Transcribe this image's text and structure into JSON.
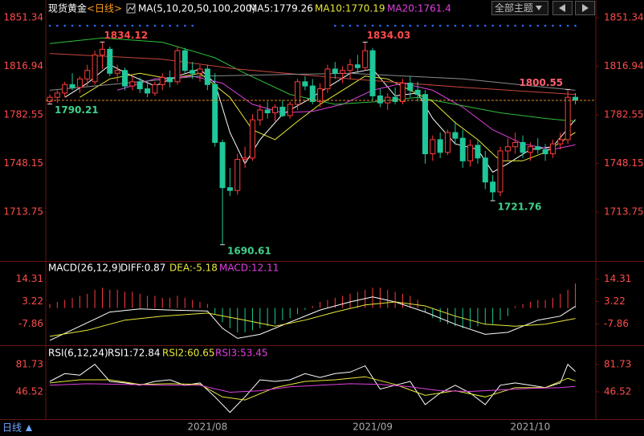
{
  "chart_data": [
    {
      "type": "candlestick",
      "title": "现货黄金",
      "period": "<日线>",
      "legend_title": "MA(5,10,20,50,100,200)",
      "categories": [
        null,
        null,
        null,
        null,
        null,
        null,
        null,
        null,
        null,
        null,
        null,
        null,
        null,
        null,
        null,
        null,
        null,
        null,
        null,
        null,
        null,
        "2021/08",
        null,
        null,
        null,
        null,
        null,
        null,
        null,
        null,
        null,
        null,
        null,
        null,
        null,
        null,
        null,
        null,
        null,
        null,
        null,
        null,
        null,
        "2021/09",
        null,
        null,
        null,
        null,
        null,
        null,
        null,
        null,
        null,
        null,
        null,
        null,
        null,
        null,
        null,
        null,
        null,
        null,
        null,
        null,
        "2021/10",
        null,
        null,
        null,
        null,
        null,
        null
      ],
      "open": [
        1792,
        1795,
        1798,
        1804,
        1802,
        1808,
        1806,
        1825,
        1829,
        1812,
        1814,
        1803,
        1806,
        1801,
        1798,
        1804,
        1809,
        1806,
        1828,
        1814,
        1812,
        1815,
        1804,
        1763,
        1731,
        1729,
        1751,
        1752,
        1779,
        1786,
        1784,
        1788,
        1782,
        1790,
        1806,
        1803,
        1792,
        1801,
        1815,
        1812,
        1814,
        1818,
        1816,
        1828,
        1796,
        1791,
        1795,
        1792,
        1805,
        1800,
        1797,
        1755,
        1765,
        1756,
        1770,
        1766,
        1750,
        1761,
        1752,
        1735,
        1728,
        1757,
        1760,
        1763,
        1756,
        1760,
        1758,
        1755,
        1762,
        1765,
        1795
      ],
      "high": [
        1797,
        1800,
        1806,
        1812,
        1810,
        1818,
        1828,
        1834.12,
        1831,
        1818,
        1816,
        1810,
        1809,
        1806,
        1806,
        1812,
        1814,
        1831,
        1830,
        1820,
        1818,
        1818,
        1812,
        1765,
        1745,
        1755,
        1760,
        1783,
        1790,
        1792,
        1790,
        1793,
        1792,
        1808,
        1810,
        1808,
        1805,
        1818,
        1820,
        1817,
        1822,
        1825,
        1834.03,
        1830,
        1801,
        1798,
        1802,
        1808,
        1810,
        1806,
        1800,
        1768,
        1770,
        1772,
        1778,
        1772,
        1765,
        1764,
        1757,
        1740,
        1760,
        1766,
        1770,
        1768,
        1763,
        1766,
        1762,
        1765,
        1770,
        1800.55,
        1798
      ],
      "low": [
        1790.21,
        1791,
        1795,
        1800,
        1798,
        1803,
        1804,
        1815,
        1810,
        1806,
        1800,
        1800,
        1798,
        1795,
        1796,
        1800,
        1802,
        1804,
        1812,
        1808,
        1806,
        1800,
        1760,
        1690.61,
        1725,
        1726,
        1745,
        1750,
        1775,
        1780,
        1778,
        1781,
        1780,
        1786,
        1800,
        1790,
        1788,
        1798,
        1808,
        1805,
        1808,
        1812,
        1814,
        1793,
        1788,
        1786,
        1790,
        1790,
        1795,
        1792,
        1748,
        1750,
        1752,
        1754,
        1762,
        1745,
        1746,
        1748,
        1730,
        1721.76,
        1725,
        1750,
        1755,
        1752,
        1750,
        1755,
        1750,
        1752,
        1758,
        1762,
        1790
      ],
      "close": [
        1795,
        1798,
        1804,
        1802,
        1808,
        1814,
        1825,
        1829,
        1812,
        1814,
        1803,
        1806,
        1801,
        1798,
        1804,
        1809,
        1806,
        1828,
        1814,
        1812,
        1815,
        1804,
        1763,
        1731,
        1729,
        1751,
        1752,
        1779,
        1786,
        1784,
        1788,
        1782,
        1790,
        1806,
        1803,
        1792,
        1801,
        1815,
        1812,
        1814,
        1818,
        1816,
        1828,
        1796,
        1791,
        1795,
        1792,
        1805,
        1800,
        1797,
        1755,
        1765,
        1756,
        1770,
        1766,
        1750,
        1761,
        1752,
        1735,
        1728,
        1757,
        1760,
        1763,
        1756,
        1760,
        1758,
        1755,
        1762,
        1765,
        1795,
        1793
      ],
      "up_color": "#ff3c3c",
      "down_color": "#1fc79a",
      "last_price": 1792.8,
      "last_price_color": "#e08a2c",
      "ylim": [
        1679.1,
        1858.2
      ],
      "yticks": [
        1851.34,
        1816.94,
        1782.55,
        1748.15,
        1713.75
      ],
      "tick_color": "#ff4b4b",
      "series": [
        {
          "name": "MA5:1779.26",
          "color": "#ffffff",
          "x": [
            2,
            5,
            8,
            11,
            14,
            17,
            20,
            22,
            24,
            26,
            28,
            31,
            34,
            37,
            40,
            43,
            46,
            49,
            51,
            54,
            57,
            59,
            61,
            64,
            67,
            70
          ],
          "values": [
            1795,
            1805,
            1818,
            1810,
            1803,
            1810,
            1815,
            1805,
            1770,
            1748,
            1765,
            1783,
            1792,
            1802,
            1812,
            1815,
            1796,
            1798,
            1780,
            1762,
            1758,
            1742,
            1748,
            1758,
            1760,
            1779.26
          ]
        },
        {
          "name": "MA10:1770.19",
          "color": "#e8e83a",
          "x": [
            4,
            8,
            12,
            16,
            20,
            24,
            27,
            30,
            33,
            36,
            39,
            42,
            45,
            48,
            51,
            54,
            57,
            60,
            63,
            66,
            70
          ],
          "values": [
            1795,
            1808,
            1812,
            1808,
            1812,
            1795,
            1772,
            1765,
            1778,
            1790,
            1800,
            1810,
            1808,
            1800,
            1792,
            1777,
            1765,
            1750,
            1750,
            1756,
            1770.19
          ]
        },
        {
          "name": "MA20:1761.4",
          "color": "#e040e0",
          "x": [
            9,
            14,
            19,
            23,
            27,
            31,
            35,
            39,
            43,
            47,
            51,
            55,
            59,
            63,
            67,
            70
          ],
          "values": [
            1800,
            1808,
            1810,
            1805,
            1790,
            1784,
            1785,
            1790,
            1800,
            1805,
            1800,
            1788,
            1772,
            1762,
            1758,
            1761.4
          ]
        },
        {
          "color": "#2fbf3a",
          "x": [
            0,
            7,
            15,
            22,
            26,
            32,
            38,
            44,
            49,
            54,
            60,
            66,
            70
          ],
          "values": [
            1833,
            1837,
            1834,
            1823,
            1812,
            1797,
            1790,
            1792,
            1795,
            1790,
            1784,
            1780,
            1778
          ]
        },
        {
          "color": "#c8463c",
          "x": [
            0,
            15,
            25,
            40,
            55,
            70
          ],
          "values": [
            1826,
            1822,
            1815,
            1808,
            1802,
            1797
          ]
        },
        {
          "color": "#8a8a8a",
          "x": [
            0,
            20,
            40,
            55,
            70
          ],
          "values": [
            1800,
            1810,
            1812,
            1808,
            1800
          ]
        }
      ],
      "annotations": [
        {
          "x": 7,
          "value": 1834.12,
          "side": "high",
          "color": "#ff4b4b"
        },
        {
          "x": 0,
          "value": 1790.21,
          "side": "low",
          "color": "#3fd08a"
        },
        {
          "x": 42,
          "value": 1834.03,
          "side": "high",
          "color": "#ff4b4b"
        },
        {
          "x": 23,
          "value": 1690.61,
          "side": "low",
          "color": "#3fd08a"
        },
        {
          "x": 59,
          "value": 1721.76,
          "side": "low",
          "color": "#3fd08a"
        },
        {
          "x": 69,
          "value": 1800.55,
          "side": "high",
          "color": "#ff6070"
        }
      ]
    },
    {
      "type": "macd",
      "title": "MACD(26,12,9)",
      "ylim": [
        -18.4,
        19.25
      ],
      "yticks": [
        14.31,
        3.22,
        -7.86
      ],
      "tick_color": "#ff4b4b",
      "histogram": {
        "name": "MACD:12.11",
        "color": "#e040e0",
        "up_color": "#ff3c3c",
        "down_color": "#1fc79a",
        "values": [
          2,
          3,
          4,
          5,
          6,
          7,
          9,
          10,
          9,
          9,
          8,
          8,
          7,
          6,
          6,
          5,
          5,
          6,
          5,
          4,
          3,
          2,
          -3,
          -7,
          -10,
          -12,
          -12,
          -11,
          -10,
          -9,
          -8,
          -6,
          -5,
          -3,
          -1,
          1,
          3,
          4,
          5,
          6,
          7,
          8,
          9,
          10,
          10,
          9,
          8,
          7,
          6,
          4,
          -2,
          -5,
          -7,
          -8,
          -9,
          -10,
          -10,
          -9,
          -8,
          -8,
          -6,
          -4,
          1,
          2,
          3,
          4,
          4,
          5,
          7,
          9,
          12.11
        ]
      },
      "series": [
        {
          "name": "DIFF:0.87",
          "color": "#ffffff",
          "x": [
            0,
            4,
            8,
            12,
            16,
            21,
            23,
            25,
            28,
            32,
            36,
            40,
            43,
            46,
            50,
            54,
            58,
            61,
            65,
            68,
            70
          ],
          "values": [
            -16,
            -9,
            -2,
            -0.5,
            -1,
            -1.5,
            -10,
            -15,
            -13,
            -7,
            -1,
            3,
            5.5,
            3,
            -2,
            -8,
            -13,
            -12,
            -6,
            -4,
            0.87
          ]
        },
        {
          "name": "DEA:-5.18",
          "color": "#e8e83a",
          "x": [
            0,
            5,
            10,
            15,
            21,
            26,
            30,
            34,
            38,
            42,
            46,
            50,
            54,
            58,
            62,
            66,
            70
          ],
          "values": [
            -14,
            -11,
            -6,
            -4,
            -2.5,
            -6,
            -9,
            -6,
            -2,
            1.5,
            3,
            1,
            -4,
            -8,
            -9,
            -8,
            -5.18
          ]
        }
      ]
    },
    {
      "type": "rsi",
      "title": "RSI(6,12,24)",
      "ylim": [
        8.2,
        96.2
      ],
      "yticks": [
        81.73,
        46.52
      ],
      "tick_color": "#ff4b4b",
      "series": [
        {
          "name": "RSI1:72.84",
          "color": "#ffffff",
          "x": [
            0,
            2,
            4,
            6,
            8,
            10,
            12,
            14,
            16,
            18,
            20,
            22,
            24,
            26,
            28,
            30,
            32,
            34,
            36,
            38,
            40,
            42,
            44,
            46,
            48,
            50,
            52,
            54,
            56,
            58,
            60,
            62,
            64,
            66,
            68,
            69,
            70
          ],
          "values": [
            60,
            70,
            68,
            82,
            60,
            58,
            55,
            60,
            62,
            55,
            58,
            40,
            20,
            40,
            62,
            60,
            62,
            70,
            65,
            70,
            72,
            80,
            50,
            55,
            60,
            30,
            45,
            55,
            45,
            30,
            55,
            58,
            55,
            52,
            58,
            82,
            72.84
          ]
        },
        {
          "name": "RSI2:60.65",
          "color": "#e8e83a",
          "x": [
            0,
            4,
            8,
            12,
            16,
            20,
            23,
            26,
            30,
            34,
            38,
            42,
            46,
            50,
            54,
            58,
            62,
            66,
            69,
            70
          ],
          "values": [
            58,
            62,
            62,
            56,
            57,
            56,
            40,
            36,
            52,
            60,
            62,
            66,
            56,
            42,
            48,
            40,
            52,
            52,
            64,
            60.65
          ]
        },
        {
          "name": "RSI3:53.45",
          "color": "#e040e0",
          "x": [
            0,
            5,
            10,
            15,
            20,
            24,
            28,
            32,
            36,
            40,
            44,
            48,
            52,
            56,
            60,
            64,
            68,
            70
          ],
          "values": [
            55,
            57,
            56,
            55,
            55,
            46,
            48,
            53,
            55,
            57,
            56,
            53,
            48,
            47,
            49,
            51,
            52,
            53.45
          ]
        }
      ]
    }
  ],
  "ui": {
    "theme_button": "全部主题",
    "period_button": "日线"
  }
}
